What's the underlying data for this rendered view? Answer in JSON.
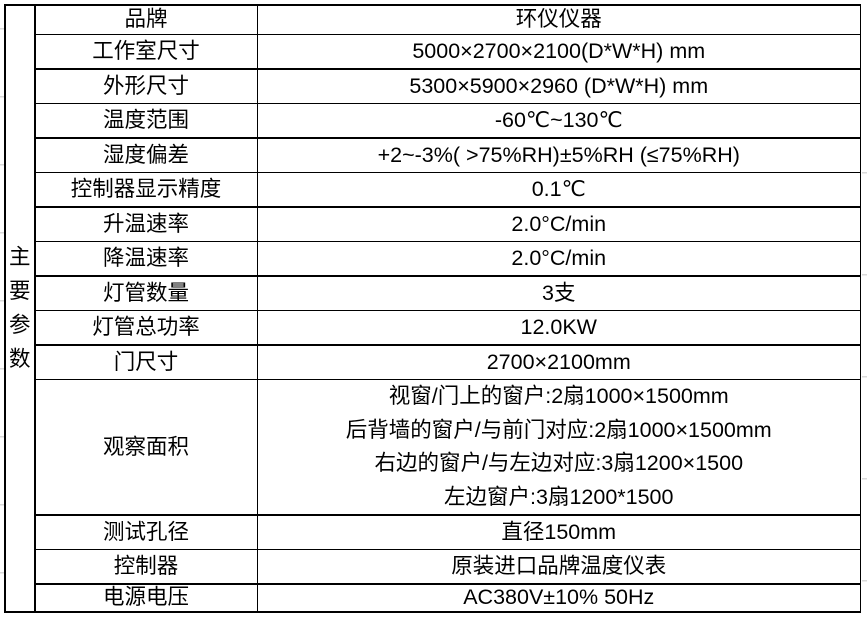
{
  "colors": {
    "table_border": "#000000",
    "text": "#000000",
    "background": "#ffffff",
    "outer_gridline_tick": "#d9d9d9"
  },
  "table": {
    "row_group_header": "主要参数",
    "rows": [
      {
        "label": "品牌",
        "value": "环仪仪器"
      },
      {
        "label": "工作室尺寸",
        "value": "5000×2700×2100(D*W*H) mm"
      },
      {
        "label": "外形尺寸",
        "value": "5300×5900×2960 (D*W*H) mm"
      },
      {
        "label": "温度范围",
        "value": "-60℃~130℃"
      },
      {
        "label": "湿度偏差",
        "value": "+2~-3%( >75%RH)±5%RH (≤75%RH)"
      },
      {
        "label": "控制器显示精度",
        "value": "0.1℃"
      },
      {
        "label": "升温速率",
        "value": "2.0°C/min"
      },
      {
        "label": "降温速率",
        "value": "2.0°C/min"
      },
      {
        "label": "灯管数量",
        "value": "3支"
      },
      {
        "label": "灯管总功率",
        "value": "12.0KW"
      },
      {
        "label": "门尺寸",
        "value": "2700×2100mm"
      },
      {
        "label": "观察面积",
        "value_lines": [
          "视窗/门上的窗户:2扇1000×1500mm",
          "后背墙的窗户/与前门对应:2扇1000×1500mm",
          "右边的窗户/与左边对应:3扇1200×1500",
          "左边窗户:3扇1200*1500"
        ]
      },
      {
        "label": "测试孔径",
        "value": "直径150mm"
      },
      {
        "label": "控制器",
        "value": "原装进口品牌温度仪表"
      },
      {
        "label": "电源电压",
        "value": "AC380V±10% 50Hz"
      }
    ]
  }
}
